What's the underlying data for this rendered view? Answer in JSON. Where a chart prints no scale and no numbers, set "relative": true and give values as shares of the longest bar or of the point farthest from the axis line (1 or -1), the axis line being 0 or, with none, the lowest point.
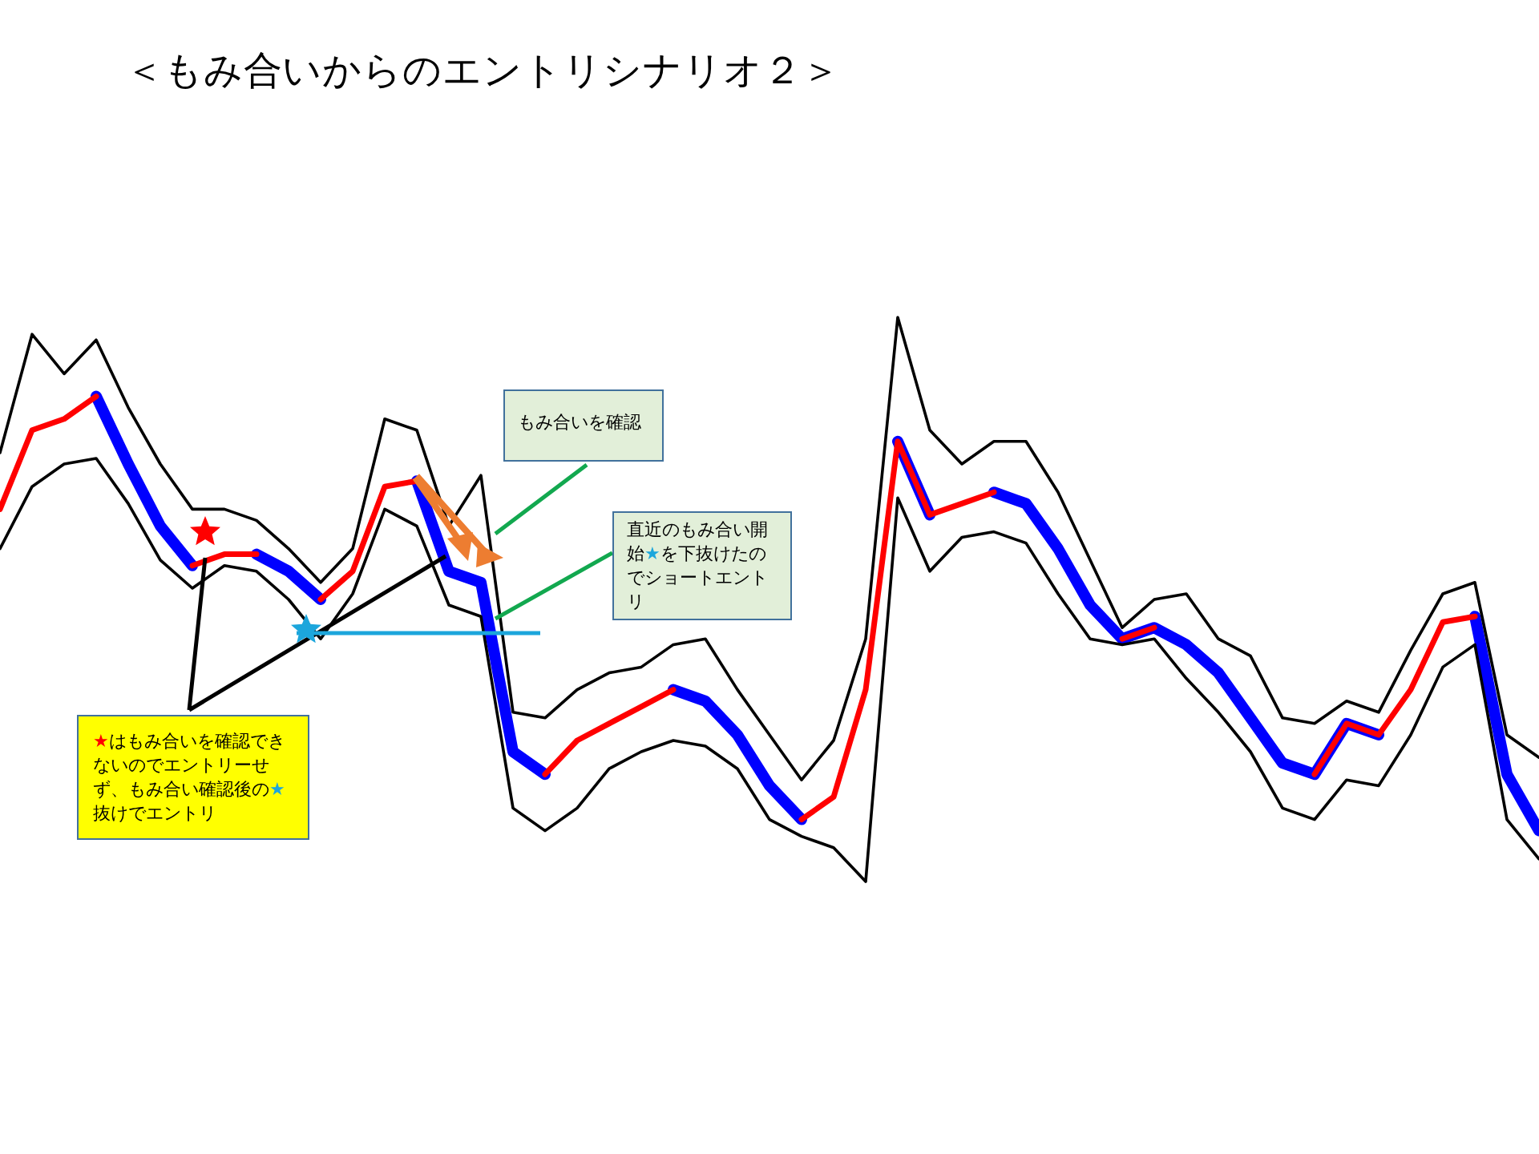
{
  "chart_data": {
    "type": "line",
    "relative": true,
    "title": "＜もみ合いからのエントリシナリオ２＞",
    "categories": [
      null,
      null,
      null,
      null,
      null,
      null,
      null,
      null,
      null,
      null,
      null,
      null,
      null,
      null,
      null,
      null,
      null,
      null,
      null,
      null,
      null,
      null,
      null,
      null,
      null,
      null,
      null,
      null,
      null,
      null,
      null,
      null,
      null,
      null,
      null,
      null,
      null,
      null,
      null,
      null,
      null,
      null,
      null,
      null,
      null,
      null,
      null,
      null,
      null
    ],
    "series": [
      {
        "color": "#000000",
        "values": [
          0.76,
          0.97,
          0.9,
          0.96,
          0.84,
          0.74,
          0.66,
          0.66,
          0.64,
          0.59,
          0.53,
          0.59,
          0.82,
          0.8,
          0.63,
          0.72,
          0.3,
          0.29,
          0.34,
          0.37,
          0.38,
          0.42,
          0.43,
          0.34,
          0.26,
          0.18,
          0.25,
          0.43,
          1.0,
          0.8,
          0.74,
          0.78,
          0.78,
          0.69,
          0.57,
          0.45,
          0.5,
          0.51,
          0.43,
          0.4,
          0.29,
          0.28,
          0.32,
          0.3,
          0.41,
          0.51,
          0.53,
          0.26,
          0.22
        ]
      },
      {
        "color": "#000000",
        "values": [
          0.59,
          0.7,
          0.74,
          0.75,
          0.67,
          0.57,
          0.52,
          0.56,
          0.55,
          0.5,
          0.43,
          0.51,
          0.66,
          0.63,
          0.49,
          0.47,
          0.13,
          0.09,
          0.13,
          0.2,
          0.23,
          0.25,
          0.24,
          0.2,
          0.11,
          0.08,
          0.06,
          0.0,
          0.68,
          0.55,
          0.61,
          0.62,
          0.6,
          0.51,
          0.43,
          0.42,
          0.43,
          0.36,
          0.3,
          0.23,
          0.13,
          0.11,
          0.18,
          0.17,
          0.26,
          0.38,
          0.42,
          0.11,
          0.04
        ]
      },
      {
        "color": "#ff0000",
        "values": [
          0.66,
          0.8,
          0.82,
          0.86,
          null,
          null,
          0.56,
          0.58,
          0.58,
          null,
          0.5,
          0.55,
          0.7,
          0.71,
          null,
          null,
          null,
          0.19,
          0.25,
          0.28,
          0.31,
          0.34,
          null,
          null,
          null,
          0.11,
          0.15,
          0.34,
          0.78,
          0.65,
          0.67,
          0.69,
          null,
          null,
          null,
          0.43,
          0.45,
          null,
          null,
          null,
          null,
          0.19,
          0.28,
          0.26,
          0.34,
          0.46,
          0.47,
          null,
          null
        ]
      },
      {
        "color": "#0000ff",
        "values": [
          null,
          null,
          null,
          0.86,
          0.74,
          0.63,
          0.56,
          null,
          0.58,
          0.55,
          0.5,
          null,
          null,
          0.71,
          0.55,
          0.53,
          0.23,
          0.19,
          null,
          null,
          null,
          0.34,
          0.32,
          0.26,
          0.17,
          0.11,
          null,
          null,
          0.78,
          0.65,
          null,
          0.69,
          0.67,
          0.59,
          0.49,
          0.43,
          0.45,
          0.42,
          0.37,
          0.29,
          0.21,
          0.19,
          0.28,
          0.26,
          null,
          null,
          0.47,
          0.19,
          0.09
        ]
      }
    ],
    "annotations": [
      "もみ合いを確認",
      "直近のもみ合い開始★を下抜けたのでショートエントリ",
      "★はもみ合いを確認できないのでエントリーせず、もみ合い確認後の★抜けでエントリ"
    ]
  }
}
